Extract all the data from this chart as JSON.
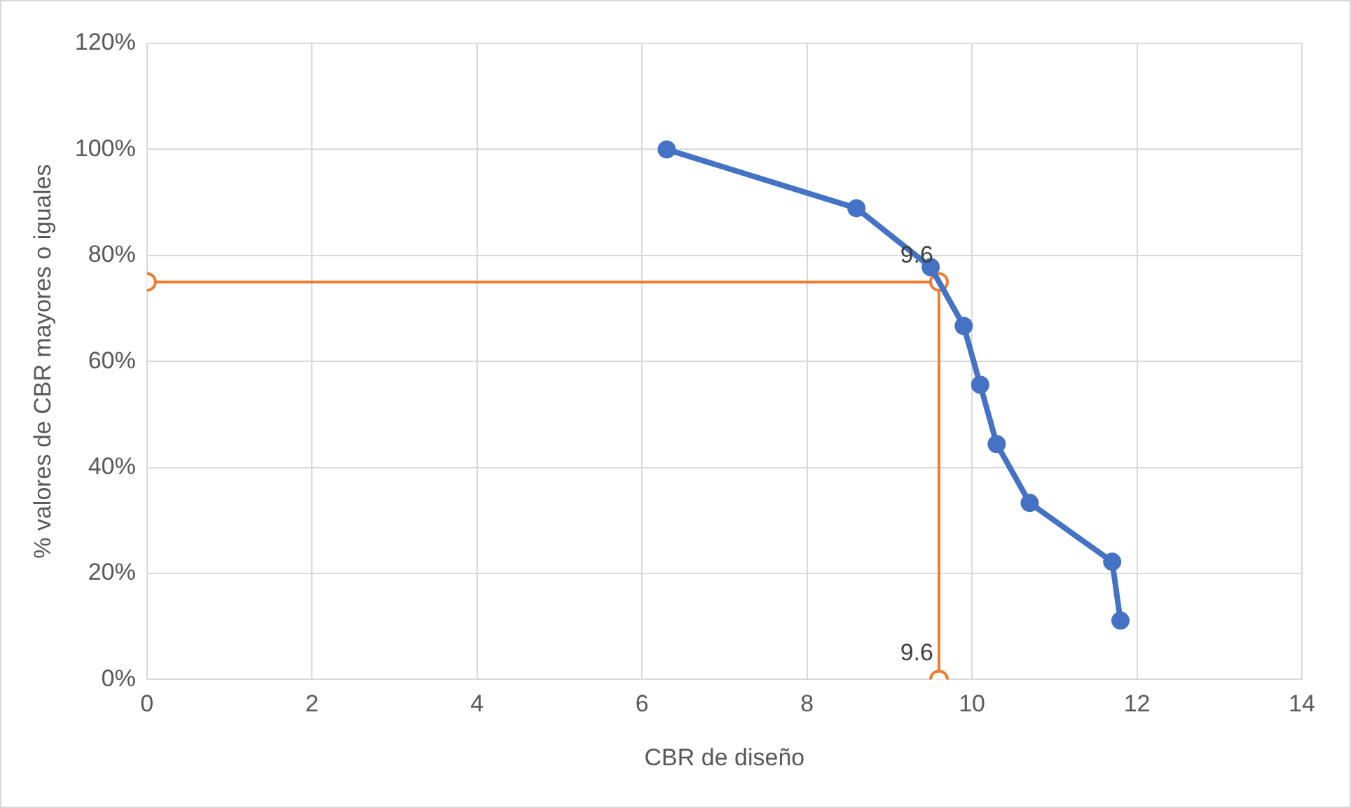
{
  "chart_data": {
    "type": "line",
    "xlabel": "CBR de diseño",
    "ylabel": "% valores de CBR mayores o iguales",
    "xlim": [
      0,
      14
    ],
    "xticks": [
      0,
      2,
      4,
      6,
      8,
      10,
      12,
      14
    ],
    "ylim": [
      0,
      120
    ],
    "yticks": [
      {
        "value": 0,
        "label": "0%"
      },
      {
        "value": 20,
        "label": "20%"
      },
      {
        "value": 40,
        "label": "40%"
      },
      {
        "value": 60,
        "label": "60%"
      },
      {
        "value": 80,
        "label": "80%"
      },
      {
        "value": 100,
        "label": "100%"
      },
      {
        "value": 120,
        "label": "120%"
      }
    ],
    "annotations": [
      {
        "text": "9.6",
        "x": 9.6,
        "y": 75
      },
      {
        "text": "9.6",
        "x": 9.6,
        "y": 0
      }
    ],
    "grid": true,
    "legend": false,
    "marker": "circle",
    "line_style": "solid",
    "series": [
      {
        "color": "#4472c4",
        "x": [
          6.3,
          8.6,
          9.5,
          9.9,
          10.1,
          10.3,
          10.7,
          11.7,
          11.8
        ],
        "values": [
          100,
          88.9,
          77.8,
          66.7,
          55.6,
          44.4,
          33.3,
          22.2,
          11.1
        ]
      },
      {
        "color": "#ed7d31",
        "x": [
          0,
          9.6,
          9.6
        ],
        "values": [
          75,
          75,
          0
        ]
      }
    ]
  }
}
